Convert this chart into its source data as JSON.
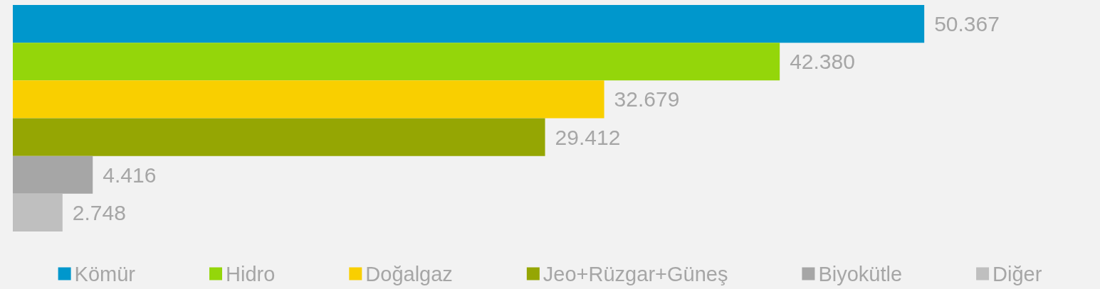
{
  "chart_data": {
    "type": "bar",
    "orientation": "horizontal",
    "categories": [
      null
    ],
    "legend": "bottom",
    "series": [
      {
        "name": "Kömür",
        "color": "#0097cc",
        "values": [
          50367
        ],
        "value_labels": [
          "50.367"
        ]
      },
      {
        "name": "Hidro",
        "color": "#94d60a",
        "values": [
          42380
        ],
        "value_labels": [
          "42.380"
        ]
      },
      {
        "name": "Doğalgaz",
        "color": "#f9cf00",
        "values": [
          32679
        ],
        "value_labels": [
          "32.679"
        ]
      },
      {
        "name": "Jeo+Rüzgar+Güneş",
        "color": "#95a603",
        "values": [
          29412
        ],
        "value_labels": [
          "29.412"
        ]
      },
      {
        "name": "Biyokütle",
        "color": "#a6a6a6",
        "values": [
          4416
        ],
        "value_labels": [
          "4.416"
        ]
      },
      {
        "name": "Diğer",
        "color": "#bfbfbf",
        "values": [
          2748
        ],
        "value_labels": [
          "2.748"
        ]
      }
    ]
  }
}
